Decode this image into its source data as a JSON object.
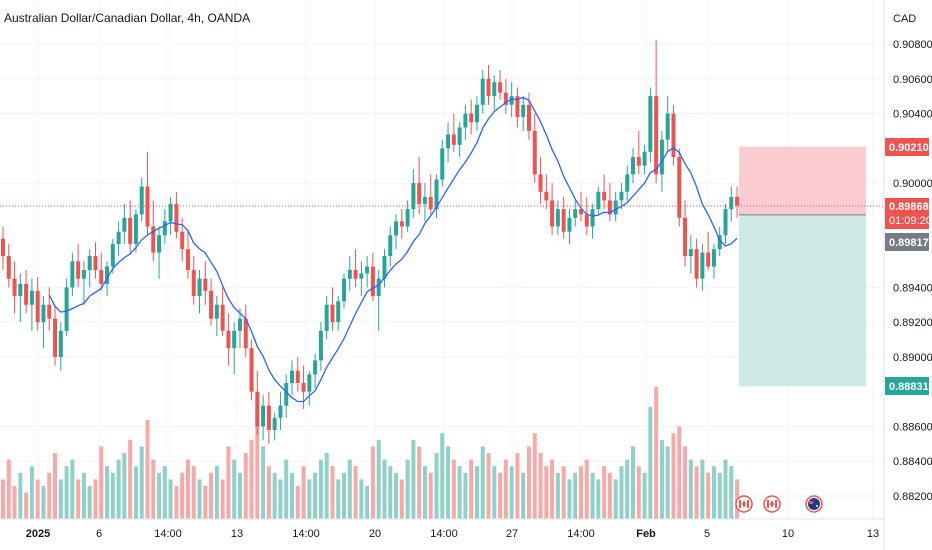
{
  "chart_data": {
    "type": "candlestick",
    "title": "Australian Dollar/Canadian Dollar, 4h, OANDA",
    "currency": "CAD",
    "ylim": [
      0.881,
      0.909
    ],
    "y_ticks": [
      "0.90800",
      "0.90600",
      "0.90400",
      "0.90000",
      "0.89400",
      "0.89200",
      "0.89000",
      "0.88600",
      "0.88400",
      "0.88200"
    ],
    "x_ticks": [
      "2025",
      "6",
      "14:00",
      "13",
      "14:00",
      "20",
      "14:00",
      "27",
      "14:00",
      "Feb",
      "5",
      "10",
      "13"
    ],
    "price_labels": {
      "stop_loss": "0.90210",
      "last": "0.89868",
      "countdown": "01:09:20",
      "entry": "0.89817",
      "take_profit": "0.88831"
    },
    "candles": [
      [
        0.8968,
        0.8975,
        0.895,
        0.8958
      ],
      [
        0.8958,
        0.8965,
        0.894,
        0.8945
      ],
      [
        0.8945,
        0.8955,
        0.8925,
        0.8935
      ],
      [
        0.8935,
        0.8948,
        0.892,
        0.8942
      ],
      [
        0.8942,
        0.895,
        0.8925,
        0.893
      ],
      [
        0.893,
        0.8945,
        0.8915,
        0.8938
      ],
      [
        0.8938,
        0.8946,
        0.8915,
        0.892
      ],
      [
        0.892,
        0.8935,
        0.8905,
        0.893
      ],
      [
        0.893,
        0.894,
        0.8915,
        0.8922
      ],
      [
        0.8922,
        0.893,
        0.8895,
        0.89
      ],
      [
        0.89,
        0.892,
        0.8892,
        0.8915
      ],
      [
        0.8915,
        0.8945,
        0.8912,
        0.894
      ],
      [
        0.894,
        0.896,
        0.8935,
        0.8955
      ],
      [
        0.8955,
        0.8965,
        0.894,
        0.8945
      ],
      [
        0.8945,
        0.8955,
        0.893,
        0.895
      ],
      [
        0.895,
        0.8962,
        0.894,
        0.8958
      ],
      [
        0.8958,
        0.8966,
        0.8945,
        0.895
      ],
      [
        0.895,
        0.896,
        0.8938,
        0.8942
      ],
      [
        0.8942,
        0.8955,
        0.8935,
        0.8952
      ],
      [
        0.8952,
        0.8968,
        0.8948,
        0.8965
      ],
      [
        0.8965,
        0.8978,
        0.8958,
        0.8972
      ],
      [
        0.8972,
        0.8988,
        0.8965,
        0.898
      ],
      [
        0.898,
        0.899,
        0.896,
        0.8965
      ],
      [
        0.8965,
        0.8985,
        0.896,
        0.8982
      ],
      [
        0.8982,
        0.9003,
        0.8978,
        0.8998
      ],
      [
        0.8998,
        0.9018,
        0.897,
        0.8975
      ],
      [
        0.8975,
        0.899,
        0.8955,
        0.896
      ],
      [
        0.896,
        0.8975,
        0.8945,
        0.897
      ],
      [
        0.897,
        0.8985,
        0.8965,
        0.8978
      ],
      [
        0.8978,
        0.8992,
        0.897,
        0.8988
      ],
      [
        0.8988,
        0.8995,
        0.8968,
        0.8972
      ],
      [
        0.8972,
        0.898,
        0.8955,
        0.8962
      ],
      [
        0.8962,
        0.8972,
        0.8945,
        0.895
      ],
      [
        0.895,
        0.8958,
        0.893,
        0.8935
      ],
      [
        0.8935,
        0.895,
        0.8925,
        0.8945
      ],
      [
        0.8945,
        0.8955,
        0.893,
        0.8938
      ],
      [
        0.8938,
        0.8945,
        0.8918,
        0.8922
      ],
      [
        0.8922,
        0.8935,
        0.8912,
        0.893
      ],
      [
        0.893,
        0.894,
        0.8912,
        0.8915
      ],
      [
        0.8915,
        0.8925,
        0.8895,
        0.8905
      ],
      [
        0.8905,
        0.892,
        0.889,
        0.8915
      ],
      [
        0.8915,
        0.8928,
        0.8905,
        0.8922
      ],
      [
        0.8922,
        0.893,
        0.89,
        0.8905
      ],
      [
        0.8905,
        0.891,
        0.8875,
        0.888
      ],
      [
        0.888,
        0.8892,
        0.8855,
        0.886
      ],
      [
        0.886,
        0.8878,
        0.8852,
        0.8872
      ],
      [
        0.8872,
        0.888,
        0.885,
        0.8858
      ],
      [
        0.8858,
        0.8868,
        0.8852,
        0.8865
      ],
      [
        0.8865,
        0.888,
        0.8858,
        0.8872
      ],
      [
        0.8872,
        0.889,
        0.8865,
        0.8885
      ],
      [
        0.8885,
        0.8898,
        0.8878,
        0.8892
      ],
      [
        0.8892,
        0.89,
        0.888,
        0.8885
      ],
      [
        0.8885,
        0.8895,
        0.887,
        0.888
      ],
      [
        0.888,
        0.8892,
        0.8872,
        0.889
      ],
      [
        0.889,
        0.8902,
        0.8882,
        0.8898
      ],
      [
        0.8898,
        0.892,
        0.8892,
        0.8915
      ],
      [
        0.8915,
        0.8935,
        0.891,
        0.893
      ],
      [
        0.893,
        0.894,
        0.8915,
        0.892
      ],
      [
        0.892,
        0.8935,
        0.8915,
        0.8932
      ],
      [
        0.8932,
        0.8948,
        0.8928,
        0.8945
      ],
      [
        0.8945,
        0.8958,
        0.8938,
        0.895
      ],
      [
        0.895,
        0.8962,
        0.894,
        0.8945
      ],
      [
        0.8945,
        0.8955,
        0.8935,
        0.8948
      ],
      [
        0.8948,
        0.8958,
        0.894,
        0.8952
      ],
      [
        0.8952,
        0.896,
        0.8932,
        0.8935
      ],
      [
        0.8935,
        0.895,
        0.8915,
        0.8945
      ],
      [
        0.8945,
        0.8962,
        0.894,
        0.8958
      ],
      [
        0.8958,
        0.8975,
        0.8952,
        0.897
      ],
      [
        0.897,
        0.8982,
        0.8962,
        0.8978
      ],
      [
        0.8978,
        0.8985,
        0.8968,
        0.8975
      ],
      [
        0.8975,
        0.899,
        0.8972,
        0.8985
      ],
      [
        0.8985,
        0.9008,
        0.898,
        0.9
      ],
      [
        0.9,
        0.9015,
        0.8982,
        0.8988
      ],
      [
        0.8988,
        0.9,
        0.8978,
        0.8992
      ],
      [
        0.8992,
        0.9005,
        0.8982,
        0.8985
      ],
      [
        0.8985,
        0.9005,
        0.898,
        0.9002
      ],
      [
        0.9002,
        0.9025,
        0.8998,
        0.902
      ],
      [
        0.902,
        0.9035,
        0.9012,
        0.9028
      ],
      [
        0.9028,
        0.904,
        0.9018,
        0.9022
      ],
      [
        0.9022,
        0.9035,
        0.9015,
        0.9032
      ],
      [
        0.9032,
        0.9045,
        0.9025,
        0.904
      ],
      [
        0.904,
        0.9048,
        0.9028,
        0.9035
      ],
      [
        0.9035,
        0.905,
        0.903,
        0.9045
      ],
      [
        0.9045,
        0.9065,
        0.904,
        0.906
      ],
      [
        0.906,
        0.9068,
        0.9045,
        0.905
      ],
      [
        0.905,
        0.9062,
        0.9042,
        0.9058
      ],
      [
        0.9058,
        0.9065,
        0.9048,
        0.9052
      ],
      [
        0.9052,
        0.906,
        0.904,
        0.9045
      ],
      [
        0.9045,
        0.9058,
        0.9038,
        0.905
      ],
      [
        0.905,
        0.9055,
        0.9032,
        0.9038
      ],
      [
        0.9038,
        0.905,
        0.903,
        0.9045
      ],
      [
        0.9045,
        0.9052,
        0.9025,
        0.903
      ],
      [
        0.903,
        0.904,
        0.9,
        0.9005
      ],
      [
        0.9005,
        0.9015,
        0.8988,
        0.8995
      ],
      [
        0.8995,
        0.9005,
        0.8985,
        0.899
      ],
      [
        0.899,
        0.9,
        0.897,
        0.8975
      ],
      [
        0.8975,
        0.899,
        0.897,
        0.8985
      ],
      [
        0.8985,
        0.8992,
        0.8968,
        0.8972
      ],
      [
        0.8972,
        0.8985,
        0.8965,
        0.898
      ],
      [
        0.898,
        0.899,
        0.8975,
        0.8985
      ],
      [
        0.8985,
        0.8995,
        0.8978,
        0.8982
      ],
      [
        0.8982,
        0.8992,
        0.897,
        0.8975
      ],
      [
        0.8975,
        0.8988,
        0.8968,
        0.8985
      ],
      [
        0.8985,
        0.8998,
        0.8982,
        0.8995
      ],
      [
        0.8995,
        0.9005,
        0.8985,
        0.899
      ],
      [
        0.899,
        0.9,
        0.8978,
        0.8982
      ],
      [
        0.8982,
        0.8995,
        0.8978,
        0.899
      ],
      [
        0.899,
        0.9,
        0.8985,
        0.8995
      ],
      [
        0.8995,
        0.901,
        0.899,
        0.9005
      ],
      [
        0.9005,
        0.902,
        0.9,
        0.9015
      ],
      [
        0.9015,
        0.903,
        0.9005,
        0.901
      ],
      [
        0.901,
        0.9022,
        0.9005,
        0.9018
      ],
      [
        0.9018,
        0.9055,
        0.9012,
        0.905
      ],
      [
        0.905,
        0.9082,
        0.9,
        0.9005
      ],
      [
        0.9005,
        0.903,
        0.8995,
        0.9025
      ],
      [
        0.9025,
        0.905,
        0.9018,
        0.904
      ],
      [
        0.904,
        0.9045,
        0.901,
        0.9015
      ],
      [
        0.9015,
        0.902,
        0.8975,
        0.898
      ],
      [
        0.898,
        0.899,
        0.8952,
        0.8958
      ],
      [
        0.8958,
        0.897,
        0.8948,
        0.8962
      ],
      [
        0.8962,
        0.8968,
        0.894,
        0.8945
      ],
      [
        0.8945,
        0.8965,
        0.8938,
        0.896
      ],
      [
        0.896,
        0.8972,
        0.895,
        0.8952
      ],
      [
        0.8952,
        0.8965,
        0.8945,
        0.8962
      ],
      [
        0.8962,
        0.8975,
        0.8958,
        0.897
      ],
      [
        0.897,
        0.8988,
        0.8965,
        0.8985
      ],
      [
        0.8985,
        0.8998,
        0.8978,
        0.8992
      ],
      [
        0.8992,
        0.8998,
        0.898,
        0.8987
      ]
    ],
    "volume": [
      0.3,
      0.45,
      0.25,
      0.35,
      0.2,
      0.4,
      0.3,
      0.25,
      0.35,
      0.5,
      0.3,
      0.4,
      0.45,
      0.3,
      0.35,
      0.25,
      0.3,
      0.55,
      0.4,
      0.35,
      0.45,
      0.5,
      0.6,
      0.4,
      0.55,
      0.75,
      0.45,
      0.35,
      0.4,
      0.3,
      0.25,
      0.35,
      0.45,
      0.4,
      0.3,
      0.25,
      0.35,
      0.4,
      0.3,
      0.55,
      0.45,
      0.35,
      0.5,
      0.6,
      0.8,
      0.55,
      0.4,
      0.35,
      0.3,
      0.45,
      0.35,
      0.25,
      0.4,
      0.3,
      0.35,
      0.45,
      0.5,
      0.4,
      0.3,
      0.35,
      0.45,
      0.4,
      0.3,
      0.25,
      0.55,
      0.6,
      0.45,
      0.4,
      0.35,
      0.3,
      0.45,
      0.6,
      0.55,
      0.4,
      0.35,
      0.5,
      0.65,
      0.55,
      0.45,
      0.4,
      0.35,
      0.45,
      0.4,
      0.55,
      0.5,
      0.4,
      0.35,
      0.45,
      0.4,
      0.5,
      0.35,
      0.55,
      0.65,
      0.5,
      0.4,
      0.45,
      0.35,
      0.4,
      0.3,
      0.35,
      0.4,
      0.45,
      0.35,
      0.3,
      0.4,
      0.35,
      0.3,
      0.4,
      0.45,
      0.55,
      0.4,
      0.35,
      0.85,
      1.0,
      0.6,
      0.55,
      0.65,
      0.7,
      0.55,
      0.45,
      0.4,
      0.45,
      0.35,
      0.4,
      0.35,
      0.45,
      0.4,
      0.3
    ]
  },
  "ui": {
    "colors": {
      "up": "#26a69a",
      "down": "#ef5350",
      "up_vol": "#8fd0c9",
      "down_vol": "#f7a9a7",
      "ma": "#2962ff",
      "stop_zone": "#f9cdd0",
      "target_zone": "#cdeae5",
      "grid": "#f0f3fa",
      "axis_text": "#131722"
    },
    "event_icons": [
      "canada-flag-icon",
      "canada-flag-icon",
      "australia-flag-icon"
    ]
  }
}
